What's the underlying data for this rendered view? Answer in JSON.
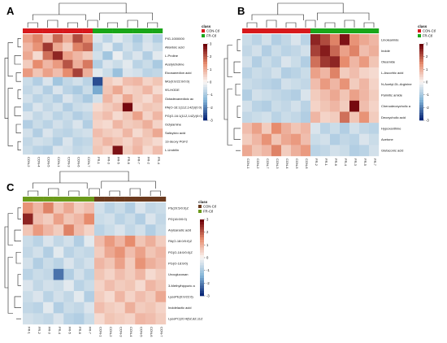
{
  "figure": {
    "panels": [
      {
        "id": "A",
        "legend_title": "class",
        "legend_items": [
          {
            "label": "CON-Ctl",
            "color": "#d7191c"
          },
          {
            "label": "FR-Ctl",
            "color": "#1aa61a"
          }
        ],
        "scale_ticks": [
          "3",
          "2",
          "1",
          "0",
          "-1",
          "-2",
          "-3"
        ],
        "rows": [
          "PIG-1000000",
          "Allantoic acid",
          "L-Proline",
          "Acetylcholine",
          "Eicosanedion acid",
          "MG(0:0/22:0/0:0)",
          "9S-HODE",
          "Octadecanedioic ac",
          "PA(O-16:1(11Z,14Z)/(0:0)",
          "PG(O-16:1(11Z,14Z)/(0:0)",
          "Octylamine",
          "Salicylcio acid",
          "13-deoxy PGF2",
          "L-Urobilin"
        ],
        "cols": [
          "CON-2",
          "CON-4",
          "CON-5",
          "CON-1",
          "CON-3",
          "CON-6",
          "CON-7",
          "FR-1",
          "FR-3",
          "FR-5",
          "FR-6",
          "FR-7",
          "FR-2",
          "FR-4"
        ],
        "groups": [
          0,
          0,
          0,
          0,
          0,
          0,
          0,
          1,
          1,
          1,
          1,
          1,
          1,
          1
        ],
        "values": [
          [
            1.2,
            1.6,
            0.8,
            1.9,
            1.1,
            2.2,
            1.4,
            -0.4,
            -0.8,
            -0.3,
            -0.6,
            -1.0,
            -0.5,
            -0.9
          ],
          [
            0.9,
            1.4,
            2.4,
            1.1,
            0.6,
            1.6,
            1.9,
            -0.7,
            -0.3,
            -0.9,
            -0.5,
            -0.8,
            -0.4,
            -0.6
          ],
          [
            1.1,
            0.4,
            1.8,
            2.6,
            1.2,
            0.9,
            0.6,
            -0.5,
            -1.1,
            -0.2,
            -0.7,
            -0.4,
            -0.9,
            -0.3
          ],
          [
            0.6,
            1.5,
            0.9,
            1.3,
            2.1,
            1.0,
            1.7,
            -0.9,
            -0.4,
            -0.6,
            -0.3,
            -0.8,
            -0.6,
            -1.0
          ],
          [
            1.3,
            0.7,
            1.2,
            0.8,
            1.5,
            2.3,
            1.0,
            -0.3,
            -0.6,
            -1.2,
            -0.4,
            -0.5,
            -0.8,
            -0.7
          ],
          [
            -0.6,
            -0.9,
            -0.4,
            -1.1,
            -0.7,
            -0.5,
            -0.8,
            -2.6,
            0.6,
            0.4,
            0.8,
            0.9,
            0.5,
            0.7
          ],
          [
            -0.7,
            -0.5,
            -0.9,
            -0.4,
            -0.8,
            -1.0,
            -0.6,
            -1.6,
            0.7,
            1.1,
            0.5,
            0.6,
            0.9,
            0.4
          ],
          [
            -0.5,
            -0.8,
            -0.6,
            -0.9,
            -0.4,
            -0.7,
            -1.0,
            -0.5,
            0.9,
            0.5,
            1.1,
            0.6,
            0.4,
            0.8
          ],
          [
            -0.8,
            -0.4,
            -0.7,
            -0.5,
            -0.9,
            -0.6,
            -0.5,
            0.4,
            0.6,
            0.8,
            2.9,
            0.5,
            0.7,
            0.6
          ],
          [
            -0.4,
            -0.7,
            -0.5,
            -0.8,
            -0.6,
            -0.9,
            -0.7,
            0.6,
            0.8,
            0.4,
            0.7,
            1.2,
            0.5,
            0.9
          ],
          [
            -0.9,
            -0.6,
            -0.8,
            -0.5,
            -0.7,
            -0.4,
            -0.9,
            0.5,
            0.4,
            0.9,
            0.6,
            0.7,
            1.0,
            0.5
          ],
          [
            -0.5,
            -0.9,
            -0.4,
            -0.7,
            -0.8,
            -0.6,
            -0.5,
            0.8,
            0.6,
            0.5,
            0.9,
            0.4,
            0.7,
            1.1
          ],
          [
            -0.7,
            -0.5,
            -0.6,
            -0.9,
            -0.4,
            -0.8,
            -0.7,
            0.6,
            0.9,
            0.7,
            0.5,
            0.8,
            0.6,
            0.4
          ],
          [
            -0.6,
            -0.8,
            -0.9,
            -0.4,
            -0.5,
            -0.7,
            -0.6,
            0.7,
            0.5,
            2.8,
            0.6,
            0.9,
            0.4,
            0.8
          ]
        ]
      },
      {
        "id": "B",
        "legend_title": "class",
        "legend_items": [
          {
            "label": "CON-Ctl",
            "color": "#d7191c"
          },
          {
            "label": "FR-Ctl",
            "color": "#1aa61a"
          }
        ],
        "scale_ticks": [
          "3",
          "2",
          "1",
          "0",
          "-1",
          "-2",
          "-3"
        ],
        "rows": [
          "Linoleamide",
          "Indole",
          "Oleamide",
          "L-Ascorbic acid",
          "N-Acetyl-DL-Arginine",
          "Palmitic amide",
          "Chenodeoxycholic a",
          "Deoxycholic acid",
          "Hypoxanthine",
          "Acetone",
          "Glutaconic acid"
        ],
        "cols": [
          "CON-1",
          "CON-2",
          "CON-7",
          "CON-3",
          "CON-4",
          "CON-5",
          "CON-6",
          "FR-2",
          "FR-1",
          "FR-6",
          "FR-4",
          "FR-3",
          "FR-5",
          "FR-7"
        ],
        "groups": [
          0,
          0,
          0,
          0,
          0,
          0,
          0,
          1,
          1,
          1,
          1,
          1,
          1,
          1
        ],
        "values": [
          [
            -0.6,
            -0.8,
            -0.5,
            -0.9,
            -0.7,
            -0.4,
            -0.8,
            2.6,
            2.2,
            1.6,
            2.8,
            1.4,
            1.1,
            0.9
          ],
          [
            -0.7,
            -0.5,
            -0.9,
            -0.6,
            -0.8,
            -0.7,
            -0.5,
            2.3,
            2.7,
            1.9,
            1.2,
            1.6,
            0.8,
            1.0
          ],
          [
            -0.5,
            -0.9,
            -0.6,
            -0.8,
            -0.4,
            -0.6,
            -0.9,
            1.8,
            2.4,
            2.6,
            1.5,
            0.9,
            1.3,
            0.7
          ],
          [
            -0.8,
            -0.6,
            -0.7,
            -0.5,
            -0.9,
            -0.8,
            -0.6,
            1.2,
            0.9,
            1.6,
            0.6,
            0.8,
            0.5,
            0.4
          ],
          [
            -0.6,
            -0.7,
            -0.8,
            -0.9,
            -0.5,
            -0.6,
            -0.7,
            0.8,
            1.3,
            0.9,
            1.4,
            0.6,
            0.9,
            0.5
          ],
          [
            -0.9,
            -0.5,
            -0.6,
            -0.7,
            -0.8,
            -0.9,
            -0.4,
            0.6,
            0.8,
            1.1,
            0.7,
            1.2,
            0.9,
            0.6
          ],
          [
            -0.5,
            -0.8,
            -0.9,
            -0.6,
            -0.7,
            -0.5,
            -0.8,
            0.5,
            0.7,
            0.9,
            0.6,
            2.9,
            0.8,
            0.5
          ],
          [
            -0.7,
            -0.6,
            -0.5,
            -0.8,
            -0.6,
            -0.7,
            -0.9,
            0.9,
            0.5,
            0.6,
            1.8,
            0.7,
            1.4,
            0.6
          ],
          [
            0.8,
            1.2,
            0.6,
            1.5,
            1.0,
            0.7,
            0.9,
            -0.4,
            -0.8,
            -0.6,
            -0.9,
            -0.5,
            -0.7,
            -0.8
          ],
          [
            0.6,
            0.9,
            1.4,
            0.7,
            1.1,
            1.3,
            0.8,
            -0.6,
            -0.5,
            -0.9,
            -0.7,
            -0.8,
            -0.4,
            -0.6
          ],
          [
            1.1,
            0.7,
            0.9,
            1.6,
            0.6,
            1.0,
            1.3,
            -0.8,
            -0.7,
            -0.5,
            -0.6,
            -0.9,
            -0.8,
            -0.5
          ]
        ]
      },
      {
        "id": "C",
        "legend_title": "class",
        "legend_items": [
          {
            "label": "CON-Ctl",
            "color": "#6b3a1e"
          },
          {
            "label": "FR-Ctl",
            "color": "#6b9a1a"
          }
        ],
        "scale_ticks": [
          "3",
          "2",
          "1",
          "0",
          "-1",
          "-2",
          "-3"
        ],
        "rows": [
          "PS(20:5/0:0)Z",
          "PG(16:0/0:0)",
          "Arylsaradic acid",
          "PA(O-18:0/0:0)Z",
          "PG(O-18:0/0:0)Z",
          "PG(O-18:0/0)",
          "Urocglucosan",
          "3-Methylhippuric a",
          "LysoPE(0:0/22:6)",
          "Indolelactic acid",
          "LysoPC(20:4(5Z,8Z,11Z"
        ],
        "cols": [
          "FR-1",
          "FR-2",
          "FR-3",
          "FR-4",
          "FR-5",
          "FR-6",
          "FR-7",
          "CON-1",
          "CON-2",
          "CON-3",
          "CON-4",
          "CON-5",
          "CON-6",
          "CON-7"
        ],
        "groups": [
          1,
          1,
          1,
          1,
          1,
          1,
          1,
          0,
          0,
          0,
          0,
          0,
          0,
          0
        ],
        "values": [
          [
            1.4,
            0.9,
            1.6,
            0.7,
            1.1,
            0.6,
            0.8,
            -0.5,
            -0.8,
            -0.6,
            -0.9,
            -0.4,
            -0.7,
            -0.6
          ],
          [
            2.6,
            0.8,
            0.6,
            1.2,
            0.7,
            0.9,
            1.5,
            -0.6,
            -0.5,
            -0.8,
            -0.6,
            -0.9,
            -0.4,
            -0.7
          ],
          [
            0.7,
            1.3,
            0.9,
            0.6,
            1.6,
            0.8,
            0.5,
            -0.8,
            -0.6,
            -0.4,
            -0.7,
            -0.5,
            -0.9,
            -0.6
          ],
          [
            -0.6,
            -0.8,
            -0.4,
            -0.7,
            -0.5,
            -0.9,
            -0.3,
            0.8,
            1.3,
            0.9,
            1.5,
            0.7,
            1.0,
            0.6
          ],
          [
            -0.7,
            -0.5,
            -0.9,
            -0.3,
            -0.8,
            -0.6,
            -0.7,
            0.6,
            1.1,
            1.4,
            0.8,
            1.2,
            0.7,
            0.9
          ],
          [
            -0.5,
            -0.9,
            -0.6,
            -0.8,
            -0.4,
            -0.7,
            -0.5,
            0.9,
            0.7,
            1.2,
            0.6,
            1.4,
            1.0,
            0.8
          ],
          [
            -0.8,
            -0.6,
            -0.7,
            -2.2,
            -0.9,
            -0.5,
            -0.8,
            0.7,
            0.5,
            0.8,
            0.6,
            0.9,
            0.4,
            0.6
          ],
          [
            -0.4,
            -0.7,
            -0.5,
            -0.6,
            -0.3,
            -0.8,
            -0.6,
            0.5,
            0.8,
            0.6,
            0.7,
            0.4,
            0.9,
            0.7
          ],
          [
            -0.6,
            -0.4,
            -0.8,
            -0.5,
            -0.7,
            -0.3,
            -0.9,
            0.6,
            0.4,
            0.9,
            0.5,
            0.8,
            0.6,
            1.1
          ],
          [
            -0.7,
            -0.8,
            -0.3,
            -0.9,
            -0.6,
            -0.7,
            -0.4,
            0.8,
            0.6,
            0.5,
            1.0,
            0.6,
            0.7,
            0.5
          ],
          [
            -0.5,
            -0.6,
            -0.7,
            -0.4,
            -0.8,
            -0.9,
            -0.6,
            0.4,
            0.7,
            0.6,
            0.5,
            0.9,
            0.8,
            0.6
          ]
        ]
      }
    ]
  }
}
